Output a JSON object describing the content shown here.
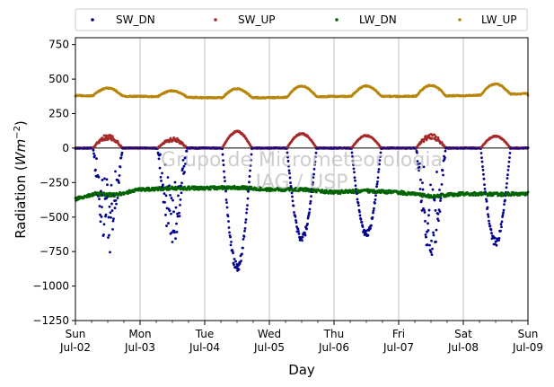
{
  "chart_data": {
    "type": "scatter",
    "xlabel": "Day",
    "ylabel": "Radiation (Wm^-2)",
    "ylim": [
      -1250,
      800
    ],
    "yticks": [
      750,
      500,
      250,
      0,
      -250,
      -500,
      -750,
      -1000,
      -1250
    ],
    "xlim": [
      0,
      7
    ],
    "xticks": [
      {
        "day": 0,
        "weekday": "Sun",
        "date": "Jul-02"
      },
      {
        "day": 1,
        "weekday": "Mon",
        "date": "Jul-03"
      },
      {
        "day": 2,
        "weekday": "Tue",
        "date": "Jul-04"
      },
      {
        "day": 3,
        "weekday": "Wed",
        "date": "Jul-05"
      },
      {
        "day": 4,
        "weekday": "Thu",
        "date": "Jul-06"
      },
      {
        "day": 5,
        "weekday": "Fri",
        "date": "Jul-07"
      },
      {
        "day": 6,
        "weekday": "Sat",
        "date": "Jul-08"
      },
      {
        "day": 7,
        "weekday": "Sun",
        "date": "Jul-09"
      }
    ],
    "grid": "vertical",
    "legend_placement": "top, outside plot",
    "watermark": [
      "Grupo de Micrometeorologia",
      "IAG / USP"
    ],
    "series": [
      {
        "name": "SW_DN",
        "color": "#00008b",
        "daily_min": [
          -780,
          -700,
          -900,
          -680,
          -650,
          -800,
          -710
        ]
      },
      {
        "name": "SW_UP",
        "color": "#a52a2a",
        "daily_max": [
          100,
          80,
          125,
          110,
          95,
          105,
          90
        ]
      },
      {
        "name": "LW_DN",
        "color": "#006400",
        "points": [
          [
            0,
            -370
          ],
          [
            0.3,
            -330
          ],
          [
            0.6,
            -340
          ],
          [
            1,
            -300
          ],
          [
            1.5,
            -290
          ],
          [
            2,
            -290
          ],
          [
            2.5,
            -285
          ],
          [
            3,
            -300
          ],
          [
            3.5,
            -300
          ],
          [
            4,
            -320
          ],
          [
            4.5,
            -310
          ],
          [
            5,
            -320
          ],
          [
            5.5,
            -350
          ],
          [
            6,
            -330
          ],
          [
            6.5,
            -335
          ],
          [
            7,
            -330
          ]
        ]
      },
      {
        "name": "LW_UP",
        "color": "#b8860b",
        "baseline": [
          380,
          375,
          365,
          365,
          375,
          375,
          380,
          395
        ],
        "daily_peak": [
          435,
          415,
          430,
          450,
          450,
          455,
          465
        ]
      }
    ]
  }
}
